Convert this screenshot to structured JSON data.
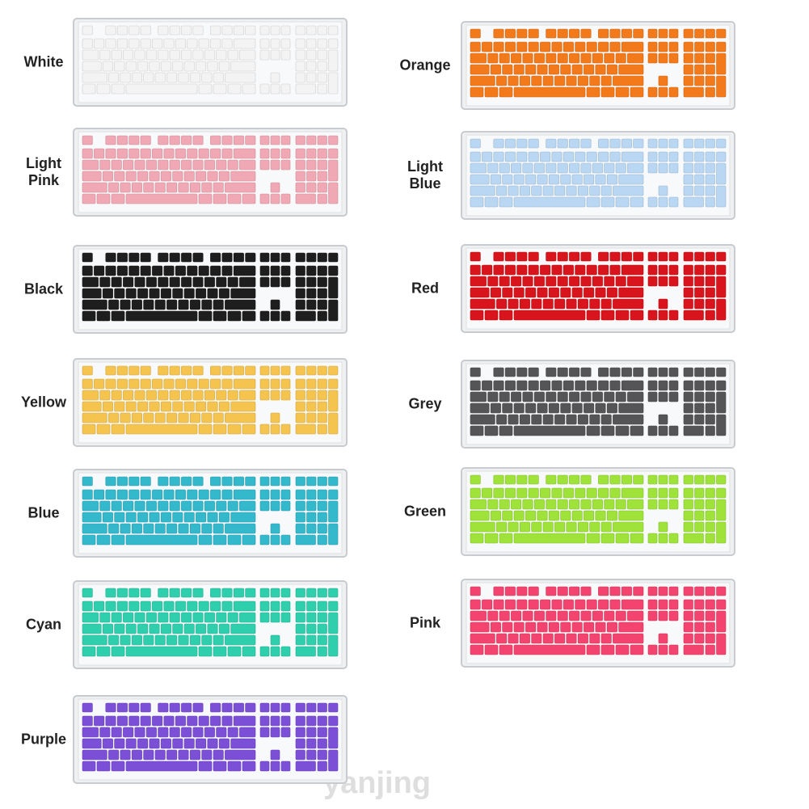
{
  "keyboards": [
    {
      "label": "White",
      "color": "#f3f3f3"
    },
    {
      "label": "Light Pink",
      "color": "#f0a8b4"
    },
    {
      "label": "Black",
      "color": "#1e1e1e"
    },
    {
      "label": "Yellow",
      "color": "#f5c44e"
    },
    {
      "label": "Blue",
      "color": "#33b8cc"
    },
    {
      "label": "Cyan",
      "color": "#2fcfae"
    },
    {
      "label": "Purple",
      "color": "#7b4fd6"
    },
    {
      "label": "Orange",
      "color": "#f27a1a"
    },
    {
      "label": "Light Blue",
      "color": "#b9d7f2"
    },
    {
      "label": "Red",
      "color": "#d8141c"
    },
    {
      "label": "Grey",
      "color": "#555557"
    },
    {
      "label": "Green",
      "color": "#9ee23a"
    },
    {
      "label": "Pink",
      "color": "#f2446e"
    }
  ],
  "watermark": "yanjing"
}
